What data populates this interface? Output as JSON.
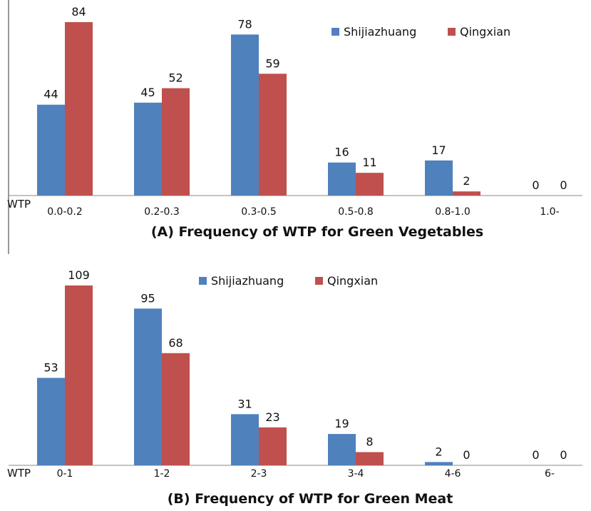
{
  "chart_data": [
    {
      "type": "bar",
      "title": "(A) Frequency of WTP for Green Vegetables",
      "xlabel": "WTP",
      "ylabel": "",
      "categories": [
        "0.0-0.2",
        "0.2-0.3",
        "0.3-0.5",
        "0.5-0.8",
        "0.8-1.0",
        "1.0-"
      ],
      "series": [
        {
          "name": "Shijiazhuang",
          "values": [
            44,
            45,
            78,
            16,
            17,
            0
          ],
          "color": "#4F81BD"
        },
        {
          "name": "Qingxian",
          "values": [
            84,
            52,
            59,
            11,
            2,
            0
          ],
          "color": "#C0504D"
        }
      ],
      "ylim": [
        0,
        90
      ],
      "grid": false,
      "legend": "top-right"
    },
    {
      "type": "bar",
      "title": "(B) Frequency of WTP for Green Meat",
      "xlabel": "WTP",
      "ylabel": "",
      "categories": [
        "0-1",
        "1-2",
        "2-3",
        "3-4",
        "4-6",
        "6-"
      ],
      "series": [
        {
          "name": "Shijiazhuang",
          "values": [
            53,
            95,
            31,
            19,
            2,
            0
          ],
          "color": "#4F81BD"
        },
        {
          "name": "Qingxian",
          "values": [
            109,
            68,
            23,
            8,
            0,
            0
          ],
          "color": "#C0504D"
        }
      ],
      "ylim": [
        0,
        115
      ],
      "grid": false,
      "legend": "top-center"
    }
  ]
}
